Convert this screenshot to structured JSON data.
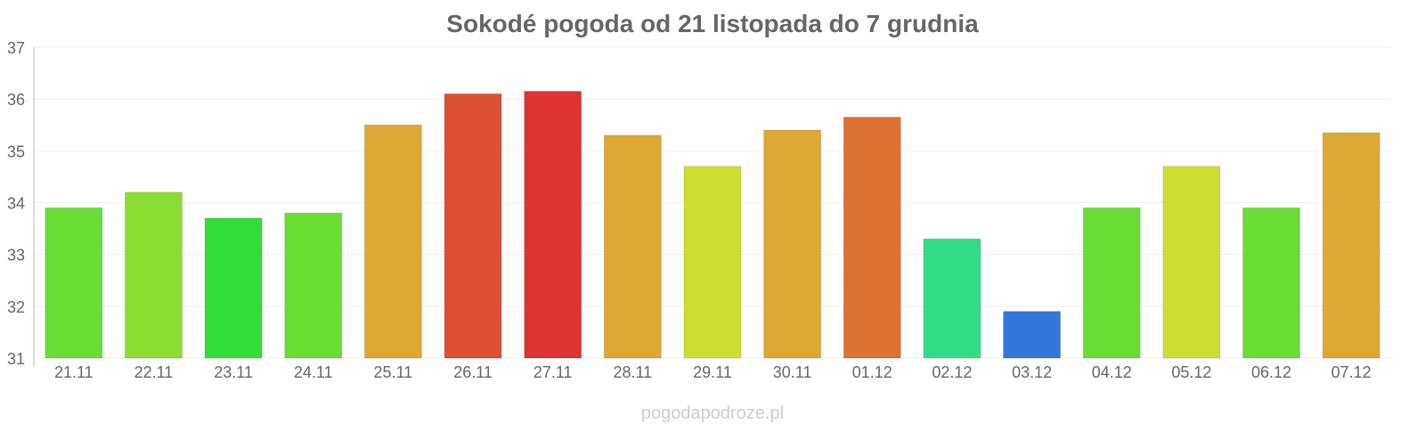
{
  "chart_data": {
    "type": "bar",
    "title": "Sokodé pogoda od 21 listopada do 7 grudnia",
    "xlabel": "",
    "ylabel": "",
    "ylim": [
      31,
      37
    ],
    "yticks": [
      "31",
      "32",
      "33",
      "34",
      "35",
      "36",
      "37"
    ],
    "grid": true,
    "categories": [
      "21.11",
      "22.11",
      "23.11",
      "24.11",
      "25.11",
      "26.11",
      "27.11",
      "28.11",
      "29.11",
      "30.11",
      "01.12",
      "02.12",
      "03.12",
      "04.12",
      "05.12",
      "06.12",
      "07.12"
    ],
    "values": [
      33.9,
      34.2,
      33.7,
      33.8,
      35.5,
      36.1,
      36.15,
      35.3,
      34.7,
      35.4,
      35.65,
      33.3,
      31.9,
      33.9,
      34.7,
      33.9,
      35.35
    ],
    "colors": [
      "#6add35",
      "#8cdd33",
      "#33dd38",
      "#6add35",
      "#dda833",
      "#dd5033",
      "#dd3333",
      "#dda833",
      "#cddd33",
      "#dda833",
      "#dd7033",
      "#33dd88",
      "#3377dd",
      "#6add35",
      "#cddd33",
      "#6add35",
      "#dda833"
    ]
  },
  "watermark": "pogodapodroze.pl"
}
